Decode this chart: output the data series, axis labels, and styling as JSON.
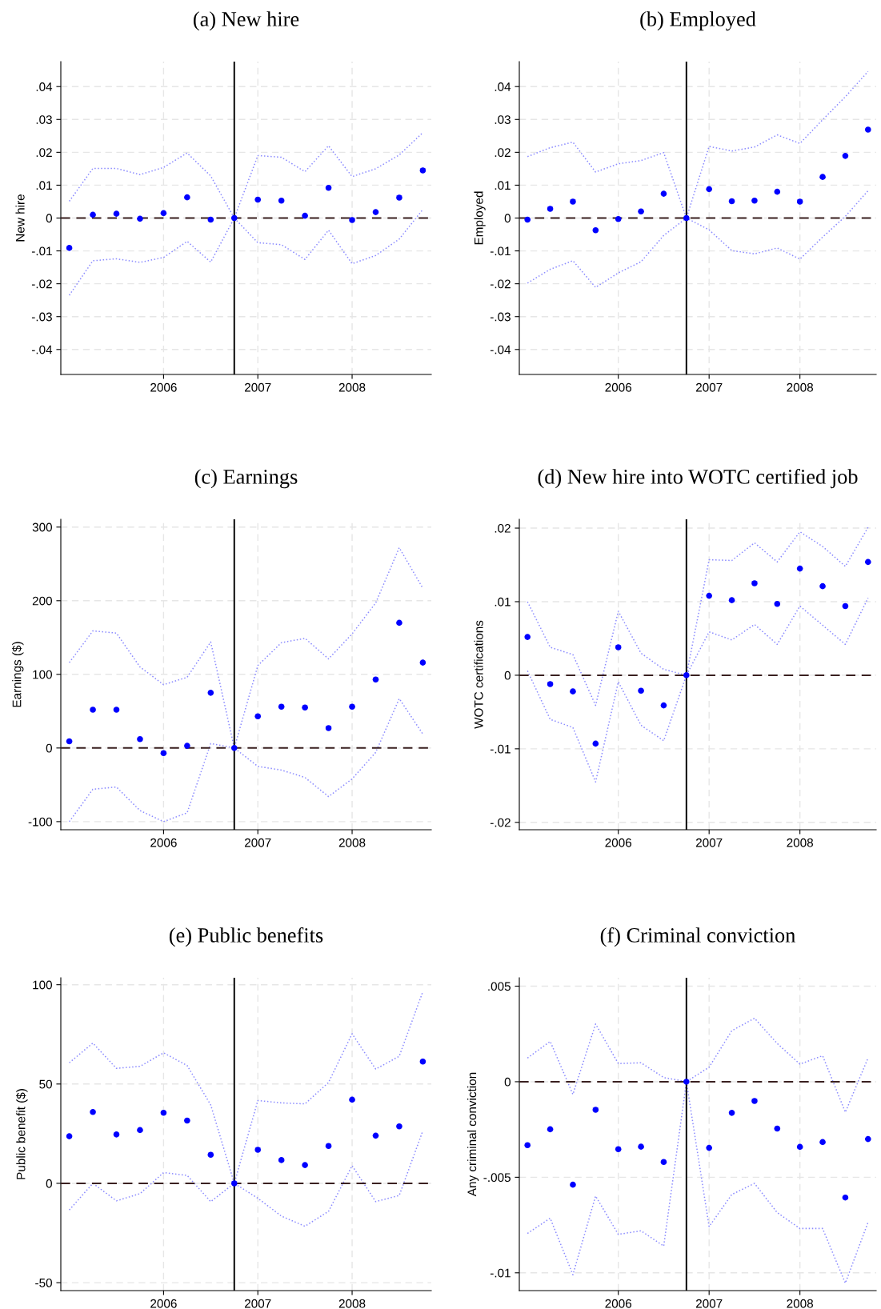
{
  "chart_data": [
    {
      "type": "scatter",
      "title": "(a) New hire",
      "ylabel": "New hire",
      "x": [
        2005,
        2005.25,
        2005.5,
        2005.75,
        2006,
        2006.25,
        2006.5,
        2006.75,
        2007,
        2007.25,
        2007.5,
        2007.75,
        2008,
        2008.25,
        2008.5,
        2008.75
      ],
      "xlim": [
        2004.91,
        2008.84
      ],
      "xticks": [
        2006,
        2007,
        2008
      ],
      "ylim": [
        -0.0476,
        0.0476
      ],
      "yticks": [
        {
          "value": -0.04,
          "label": "-.04"
        },
        {
          "value": -0.03,
          "label": "-.03"
        },
        {
          "value": -0.02,
          "label": "-.02"
        },
        {
          "value": -0.01,
          "label": "-.01"
        },
        0,
        {
          "value": 0.01,
          "label": ".01"
        },
        {
          "value": 0.02,
          "label": ".02"
        },
        {
          "value": 0.03,
          "label": ".03"
        },
        {
          "value": 0.04,
          "label": ".04"
        }
      ],
      "grid": true,
      "ref_lines": [
        {
          "axis": "y",
          "value": 0,
          "line_style": "dashed",
          "color": "#3a2020"
        },
        {
          "axis": "x",
          "value": 2006.75,
          "line_style": "solid",
          "color": "#000000"
        }
      ],
      "series": [
        {
          "type": "line",
          "color": "#8c8cff",
          "line_style": "dotted",
          "marker": "none",
          "values": [
            0.0051,
            0.0151,
            0.0151,
            0.0132,
            0.0154,
            0.0198,
            0.0128,
            0,
            0.019,
            0.0185,
            0.0141,
            0.022,
            0.0126,
            0.015,
            0.0192,
            0.026
          ]
        },
        {
          "type": "line",
          "color": "#8c8cff",
          "line_style": "dotted",
          "marker": "none",
          "values": [
            -0.0235,
            -0.013,
            -0.0124,
            -0.0135,
            -0.012,
            -0.0071,
            -0.0134,
            0,
            -0.0075,
            -0.0081,
            -0.0126,
            -0.0037,
            -0.0139,
            -0.0114,
            -0.0064,
            0.0026
          ]
        },
        {
          "color": "#0000ff",
          "marker": "circle",
          "values": [
            -0.0091,
            0.001,
            0.0013,
            -0.0002,
            0.0015,
            0.0063,
            -0.0005,
            0,
            0.0056,
            0.0053,
            0.0007,
            0.0092,
            -0.0006,
            0.0018,
            0.0062,
            0.0145
          ]
        }
      ]
    },
    {
      "type": "scatter",
      "title": "(b) Employed",
      "ylabel": "Employed",
      "x": [
        2005,
        2005.25,
        2005.5,
        2005.75,
        2006,
        2006.25,
        2006.5,
        2006.75,
        2007,
        2007.25,
        2007.5,
        2007.75,
        2008,
        2008.25,
        2008.5,
        2008.75
      ],
      "xlim": [
        2004.91,
        2008.84
      ],
      "xticks": [
        2006,
        2007,
        2008
      ],
      "ylim": [
        -0.0476,
        0.0476
      ],
      "yticks": [
        {
          "value": -0.04,
          "label": "-.04"
        },
        {
          "value": -0.03,
          "label": "-.03"
        },
        {
          "value": -0.02,
          "label": "-.02"
        },
        {
          "value": -0.01,
          "label": "-.01"
        },
        0,
        {
          "value": 0.01,
          "label": ".01"
        },
        {
          "value": 0.02,
          "label": ".02"
        },
        {
          "value": 0.03,
          "label": ".03"
        },
        {
          "value": 0.04,
          "label": ".04"
        }
      ],
      "grid": true,
      "ref_lines": [
        {
          "axis": "y",
          "value": 0,
          "line_style": "dashed",
          "color": "#3a2020"
        },
        {
          "axis": "x",
          "value": 2006.75,
          "line_style": "solid",
          "color": "#000000"
        }
      ],
      "series": [
        {
          "type": "line",
          "color": "#8c8cff",
          "line_style": "dotted",
          "marker": "none",
          "values": [
            0.0187,
            0.0214,
            0.0231,
            0.014,
            0.0165,
            0.0175,
            0.0199,
            0,
            0.0218,
            0.0204,
            0.0216,
            0.0253,
            0.0227,
            0.0299,
            0.0369,
            0.0446
          ]
        },
        {
          "type": "line",
          "color": "#8c8cff",
          "line_style": "dotted",
          "marker": "none",
          "values": [
            -0.0198,
            -0.0156,
            -0.013,
            -0.0211,
            -0.0167,
            -0.0133,
            -0.0053,
            0,
            -0.0036,
            -0.0099,
            -0.0109,
            -0.0091,
            -0.0125,
            -0.0058,
            0.0005,
            0.0083
          ]
        },
        {
          "color": "#0000ff",
          "marker": "circle",
          "values": [
            -0.0005,
            0.0028,
            0.005,
            -0.0037,
            -0.0003,
            0.002,
            0.0074,
            0,
            0.0088,
            0.0051,
            0.0053,
            0.008,
            0.005,
            0.0125,
            0.0189,
            0.0269
          ]
        }
      ]
    },
    {
      "type": "scatter",
      "title": "(c) Earnings",
      "ylabel": "Earnings ($)",
      "x": [
        2005,
        2005.25,
        2005.5,
        2005.75,
        2006,
        2006.25,
        2006.5,
        2006.75,
        2007,
        2007.25,
        2007.5,
        2007.75,
        2008,
        2008.25,
        2008.5,
        2008.75
      ],
      "xlim": [
        2004.91,
        2008.84
      ],
      "xticks": [
        2006,
        2007,
        2008
      ],
      "ylim": [
        -111,
        310.6
      ],
      "yticks": [
        -100,
        0,
        100,
        200,
        300
      ],
      "grid": true,
      "ref_lines": [
        {
          "axis": "y",
          "value": 0,
          "line_style": "dashed",
          "color": "#3a2020"
        },
        {
          "axis": "x",
          "value": 2006.75,
          "line_style": "solid",
          "color": "#000000"
        }
      ],
      "series": [
        {
          "type": "line",
          "color": "#8c8cff",
          "line_style": "dotted",
          "marker": "none",
          "values": [
            116,
            159,
            156,
            110,
            86,
            96,
            144,
            0,
            112,
            143,
            149,
            121,
            155,
            197,
            272,
            217
          ]
        },
        {
          "type": "line",
          "color": "#8c8cff",
          "line_style": "dotted",
          "marker": "none",
          "values": [
            -100,
            -56,
            -53,
            -85,
            -100,
            -88,
            6,
            0,
            -25,
            -30,
            -40,
            -66,
            -42,
            -6,
            67,
            19
          ]
        },
        {
          "color": "#0000ff",
          "marker": "circle",
          "values": [
            9,
            52,
            52,
            12,
            -7,
            3,
            75,
            0,
            43,
            56,
            55,
            27,
            56,
            93,
            170,
            116
          ]
        }
      ]
    },
    {
      "type": "scatter",
      "title": "(d) New hire into WOTC certified job",
      "ylabel": "WOTC certifications",
      "x": [
        2005,
        2005.25,
        2005.5,
        2005.75,
        2006,
        2006.25,
        2006.5,
        2006.75,
        2007,
        2007.25,
        2007.5,
        2007.75,
        2008,
        2008.25,
        2008.5,
        2008.75
      ],
      "xlim": [
        2004.91,
        2008.84
      ],
      "xticks": [
        2006,
        2007,
        2008
      ],
      "ylim": [
        -0.021,
        0.0212
      ],
      "yticks": [
        {
          "value": -0.02,
          "label": "-.02"
        },
        {
          "value": -0.01,
          "label": "-.01"
        },
        0,
        {
          "value": 0.01,
          "label": ".01"
        },
        {
          "value": 0.02,
          "label": ".02"
        }
      ],
      "grid": true,
      "ref_lines": [
        {
          "axis": "y",
          "value": 0,
          "line_style": "dashed",
          "color": "#3a2020"
        },
        {
          "axis": "x",
          "value": 2006.75,
          "line_style": "solid",
          "color": "#000000"
        }
      ],
      "series": [
        {
          "type": "line",
          "color": "#8c8cff",
          "line_style": "dotted",
          "marker": "none",
          "values": [
            0.01,
            0.0038,
            0.0028,
            -0.0041,
            0.0087,
            0.003,
            0.0008,
            0,
            0.0157,
            0.0156,
            0.018,
            0.0154,
            0.0195,
            0.0175,
            0.0148,
            0.0201
          ]
        },
        {
          "type": "line",
          "color": "#8c8cff",
          "line_style": "dotted",
          "marker": "none",
          "values": [
            0.0006,
            -0.006,
            -0.0071,
            -0.0145,
            -0.0009,
            -0.0068,
            -0.0089,
            0,
            0.0059,
            0.0048,
            0.0069,
            0.0042,
            0.0094,
            0.0068,
            0.0042,
            0.0105
          ]
        },
        {
          "color": "#0000ff",
          "marker": "circle",
          "values": [
            0.0052,
            -0.0012,
            -0.0022,
            -0.0093,
            0.0038,
            -0.0021,
            -0.0041,
            0,
            0.0108,
            0.0102,
            0.0125,
            0.0097,
            0.0145,
            0.0121,
            0.0094,
            0.0154
          ]
        }
      ]
    },
    {
      "type": "scatter",
      "title": "(e) Public benefits",
      "ylabel": "Public benefit ($)",
      "x": [
        2005,
        2005.25,
        2005.5,
        2005.75,
        2006,
        2006.25,
        2006.5,
        2006.75,
        2007,
        2007.25,
        2007.5,
        2007.75,
        2008,
        2008.25,
        2008.5,
        2008.75
      ],
      "xlim": [
        2004.91,
        2008.84
      ],
      "xticks": [
        2006,
        2007,
        2008
      ],
      "ylim": [
        -54,
        103.5
      ],
      "yticks": [
        -50,
        0,
        50,
        100
      ],
      "grid": true,
      "ref_lines": [
        {
          "axis": "y",
          "value": 0,
          "line_style": "dashed",
          "color": "#3a2020"
        },
        {
          "axis": "x",
          "value": 2006.75,
          "line_style": "solid",
          "color": "#000000"
        }
      ],
      "series": [
        {
          "type": "line",
          "color": "#8c8cff",
          "line_style": "dotted",
          "marker": "none",
          "values": [
            60.7,
            70.6,
            57.9,
            58.9,
            65.7,
            59.3,
            39.5,
            0,
            41.7,
            40.5,
            40,
            50.8,
            75.3,
            57.5,
            64,
            96.5
          ]
        },
        {
          "type": "line",
          "color": "#8c8cff",
          "line_style": "dotted",
          "marker": "none",
          "values": [
            -13.4,
            0,
            -8.8,
            -5.2,
            5.4,
            4,
            -9.2,
            0,
            -7.5,
            -16.5,
            -21.6,
            -14.1,
            8.9,
            -9.2,
            -6.1,
            26.4
          ]
        },
        {
          "color": "#0000ff",
          "marker": "circle",
          "values": [
            23.7,
            35.9,
            24.6,
            26.8,
            35.5,
            31.6,
            14.4,
            0,
            16.9,
            11.7,
            9.2,
            18.8,
            42.1,
            24,
            28.7,
            61.3
          ]
        }
      ]
    },
    {
      "type": "scatter",
      "title": "(f) Criminal conviction",
      "ylabel": "Any criminal conviction",
      "x": [
        2005,
        2005.25,
        2005.5,
        2005.75,
        2006,
        2006.25,
        2006.5,
        2006.75,
        2007,
        2007.25,
        2007.5,
        2007.75,
        2008,
        2008.25,
        2008.5,
        2008.75
      ],
      "xlim": [
        2004.91,
        2008.84
      ],
      "xticks": [
        2006,
        2007,
        2008
      ],
      "ylim": [
        -0.01093,
        0.00544
      ],
      "yticks": [
        {
          "value": -0.01,
          "label": "-.01"
        },
        {
          "value": -0.005,
          "label": "-.005"
        },
        0,
        {
          "value": 0.005,
          "label": ".005"
        }
      ],
      "grid": true,
      "ref_lines": [
        {
          "axis": "y",
          "value": 0,
          "line_style": "dashed",
          "color": "#3a2020"
        },
        {
          "axis": "x",
          "value": 2006.75,
          "line_style": "solid",
          "color": "#000000"
        }
      ],
      "series": [
        {
          "type": "line",
          "color": "#8c8cff",
          "line_style": "dotted",
          "marker": "none",
          "values": [
            0.00124,
            0.00211,
            -0.00066,
            0.00302,
            0.00095,
            0.00099,
            0.00022,
            0,
            0.00076,
            0.00267,
            0.00332,
            0.002,
            0.00092,
            0.00136,
            -0.0016,
            0.00124
          ]
        },
        {
          "type": "line",
          "color": "#8c8cff",
          "line_style": "dotted",
          "marker": "none",
          "values": [
            -0.00794,
            -0.00714,
            -0.0101,
            -0.00598,
            -0.00799,
            -0.0078,
            -0.0086,
            0,
            -0.00758,
            -0.0059,
            -0.00532,
            -0.00685,
            -0.00768,
            -0.00768,
            -0.01054,
            -0.00736
          ]
        },
        {
          "color": "#0000ff",
          "marker": "circle",
          "values": [
            -0.00332,
            -0.00249,
            -0.00539,
            -0.00147,
            -0.00353,
            -0.0034,
            -0.0042,
            0,
            -0.00346,
            -0.00163,
            -0.00101,
            -0.00245,
            -0.00341,
            -0.00316,
            -0.00606,
            -0.003
          ]
        }
      ]
    }
  ]
}
